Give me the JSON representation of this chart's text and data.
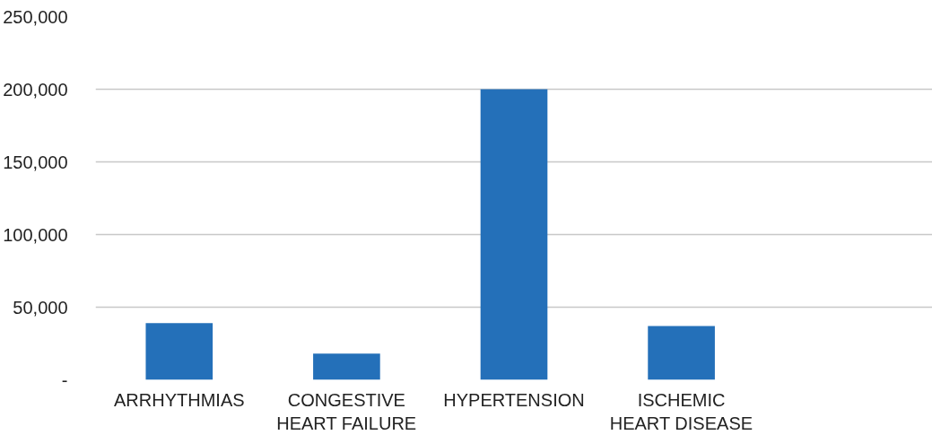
{
  "chart_data": {
    "type": "bar",
    "categories": [
      "ARRHYTHMIAS",
      "CONGESTIVE\nHEART FAILURE",
      "HYPERTENSION",
      "ISCHEMIC\nHEART DISEASE",
      null
    ],
    "values": [
      39000,
      18000,
      200000,
      37000,
      null
    ],
    "color": "#2470b9",
    "ylim": [
      0,
      250000
    ],
    "yticks": [
      {
        "value": 0,
        "label": "-"
      },
      {
        "value": 50000,
        "label": "50,000"
      },
      {
        "value": 100000,
        "label": "100,000"
      },
      {
        "value": 150000,
        "label": "150,000"
      },
      {
        "value": 200000,
        "label": "200,000"
      },
      {
        "value": 250000,
        "label": "250,000"
      }
    ],
    "grid": "y"
  }
}
